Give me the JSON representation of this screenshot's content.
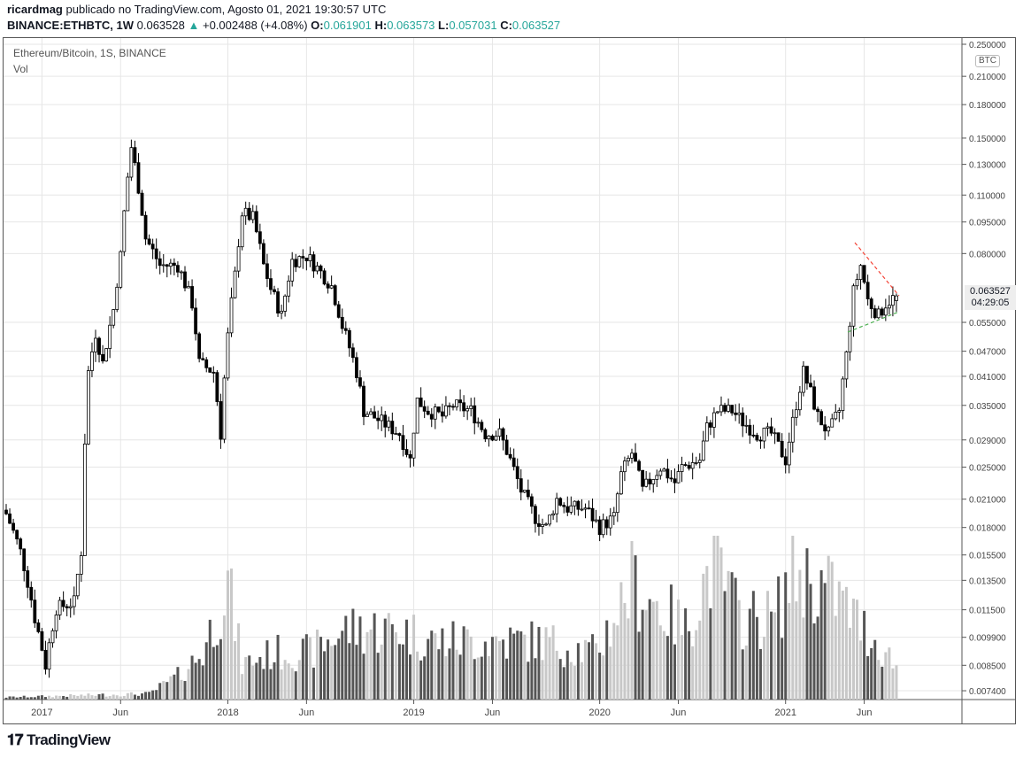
{
  "header": {
    "author": "ricardmag",
    "published": "publicado no TradingView.com, Agosto 01, 2021 19:30:57 UTC",
    "symbol": "BINANCE:ETHBTC, 1W",
    "last": "0.063528",
    "change": "+0.002488 (+4.08%)",
    "o_label": "O:",
    "o": "0.061901",
    "h_label": "H:",
    "h": "0.063573",
    "l_label": "L:",
    "l": "0.057031",
    "c_label": "C:",
    "c": "0.063527"
  },
  "legend": {
    "title": "Ethereum/Bitcoin, 1S, BINANCE",
    "vol": "Vol"
  },
  "price_label": {
    "value": "0.063527",
    "countdown": "04:29:05"
  },
  "currency_badge": "BTC",
  "brand": "TradingView",
  "colors": {
    "up_volume": "#c8c8c8",
    "down_volume": "#555555",
    "candle": "#000000",
    "upper_line": "#f44336",
    "lower_line": "#4caf50",
    "grid": "#e6e6e6"
  },
  "chart_data": {
    "type": "candlestick",
    "scale": "log",
    "y_ticks": [
      "0.250000",
      "0.210000",
      "0.180000",
      "0.150000",
      "0.130000",
      "0.110000",
      "0.095000",
      "0.080000",
      "0.055000",
      "0.047000",
      "0.041000",
      "0.035000",
      "0.029000",
      "0.025000",
      "0.021000",
      "0.018000",
      "0.015500",
      "0.013500",
      "0.011500",
      "0.009900",
      "0.008500",
      "0.007400"
    ],
    "x_ticks": [
      {
        "label": "2017",
        "week": 10
      },
      {
        "label": "Jun",
        "week": 32
      },
      {
        "label": "2018",
        "week": 62
      },
      {
        "label": "Jun",
        "week": 84
      },
      {
        "label": "2019",
        "week": 114
      },
      {
        "label": "Jun",
        "week": 136
      },
      {
        "label": "2020",
        "week": 166
      },
      {
        "label": "Jun",
        "week": 188
      },
      {
        "label": "2021",
        "week": 218
      },
      {
        "label": "Jun",
        "week": 240
      }
    ],
    "close_anchors": [
      [
        0,
        0.0194
      ],
      [
        4,
        0.0158
      ],
      [
        8,
        0.011
      ],
      [
        11,
        0.0085
      ],
      [
        14,
        0.0116
      ],
      [
        19,
        0.012
      ],
      [
        21,
        0.0158
      ],
      [
        23,
        0.042
      ],
      [
        25,
        0.052
      ],
      [
        27,
        0.044
      ],
      [
        30,
        0.059
      ],
      [
        32,
        0.079
      ],
      [
        33,
        0.1
      ],
      [
        35,
        0.143
      ],
      [
        37,
        0.115
      ],
      [
        39,
        0.087
      ],
      [
        43,
        0.075
      ],
      [
        48,
        0.075
      ],
      [
        52,
        0.061
      ],
      [
        54,
        0.044
      ],
      [
        58,
        0.042
      ],
      [
        60,
        0.03
      ],
      [
        62,
        0.051
      ],
      [
        64,
        0.071
      ],
      [
        66,
        0.1
      ],
      [
        69,
        0.097
      ],
      [
        72,
        0.075
      ],
      [
        74,
        0.066
      ],
      [
        77,
        0.057
      ],
      [
        80,
        0.077
      ],
      [
        84,
        0.079
      ],
      [
        87,
        0.074
      ],
      [
        91,
        0.067
      ],
      [
        94,
        0.054
      ],
      [
        98,
        0.042
      ],
      [
        100,
        0.034
      ],
      [
        105,
        0.032
      ],
      [
        110,
        0.03
      ],
      [
        113,
        0.026
      ],
      [
        115,
        0.036
      ],
      [
        118,
        0.034
      ],
      [
        122,
        0.033
      ],
      [
        125,
        0.035
      ],
      [
        130,
        0.034
      ],
      [
        134,
        0.03
      ],
      [
        138,
        0.03
      ],
      [
        141,
        0.026
      ],
      [
        144,
        0.022
      ],
      [
        148,
        0.019
      ],
      [
        151,
        0.018
      ],
      [
        154,
        0.021
      ],
      [
        157,
        0.02
      ],
      [
        162,
        0.02
      ],
      [
        166,
        0.018
      ],
      [
        170,
        0.019
      ],
      [
        172,
        0.024
      ],
      [
        175,
        0.027
      ],
      [
        178,
        0.022
      ],
      [
        183,
        0.025
      ],
      [
        187,
        0.023
      ],
      [
        189,
        0.025
      ],
      [
        194,
        0.026
      ],
      [
        196,
        0.031
      ],
      [
        199,
        0.034
      ],
      [
        203,
        0.034
      ],
      [
        206,
        0.032
      ],
      [
        210,
        0.03
      ],
      [
        214,
        0.03
      ],
      [
        218,
        0.026
      ],
      [
        220,
        0.032
      ],
      [
        223,
        0.042
      ],
      [
        227,
        0.033
      ],
      [
        230,
        0.03
      ],
      [
        233,
        0.034
      ],
      [
        235,
        0.046
      ],
      [
        237,
        0.065
      ],
      [
        239,
        0.075
      ],
      [
        241,
        0.062
      ],
      [
        244,
        0.057
      ],
      [
        246,
        0.061
      ],
      [
        249,
        0.0635
      ]
    ],
    "volume_anchors": [
      [
        0,
        0.2
      ],
      [
        40,
        0.5
      ],
      [
        48,
        2
      ],
      [
        55,
        4
      ],
      [
        62,
        10
      ],
      [
        66,
        3
      ],
      [
        75,
        4
      ],
      [
        85,
        4
      ],
      [
        95,
        6
      ],
      [
        110,
        6
      ],
      [
        120,
        5
      ],
      [
        135,
        5
      ],
      [
        150,
        5
      ],
      [
        165,
        4
      ],
      [
        175,
        10
      ],
      [
        190,
        6
      ],
      [
        198,
        12
      ],
      [
        205,
        7
      ],
      [
        215,
        7
      ],
      [
        220,
        11
      ],
      [
        232,
        9
      ],
      [
        240,
        6
      ],
      [
        249,
        3
      ]
    ],
    "volume_max": 14
  }
}
